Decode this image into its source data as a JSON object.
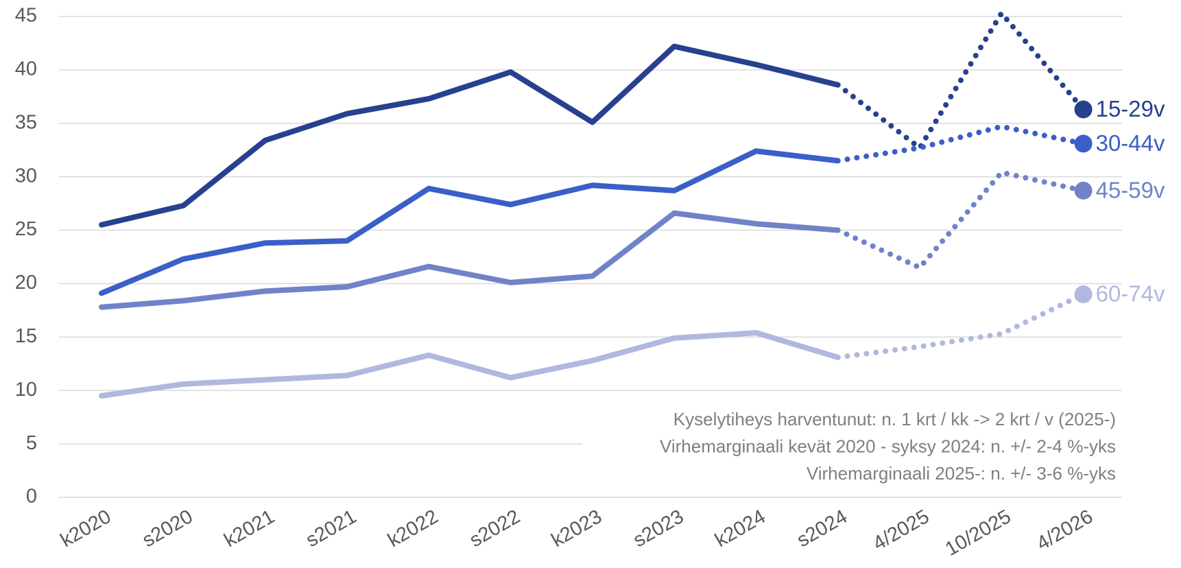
{
  "chart_data": {
    "type": "line",
    "categories": [
      "k2020",
      "s2020",
      "k2021",
      "s2021",
      "k2022",
      "s2022",
      "k2023",
      "s2023",
      "k2024",
      "s2024",
      "4/2025",
      "10/2025",
      "4/2026"
    ],
    "series": [
      {
        "name": "15-29v",
        "color": "#27418f",
        "values": [
          25.5,
          27.3,
          33.4,
          35.9,
          37.3,
          39.8,
          35.1,
          42.2,
          40.5,
          38.6,
          32.7,
          45.3,
          36.3
        ]
      },
      {
        "name": "30-44v",
        "color": "#3a5fc8",
        "values": [
          19.1,
          22.3,
          23.8,
          24.0,
          28.9,
          27.4,
          29.2,
          28.7,
          32.4,
          31.5,
          32.7,
          34.7,
          33.1
        ]
      },
      {
        "name": "45-59v",
        "color": "#7083c8",
        "values": [
          17.8,
          18.4,
          19.3,
          19.7,
          21.6,
          20.1,
          20.7,
          26.6,
          25.6,
          25.0,
          21.5,
          30.4,
          28.7
        ]
      },
      {
        "name": "60-74v",
        "color": "#b0b8e0",
        "values": [
          9.5,
          10.6,
          11.0,
          11.4,
          13.3,
          11.2,
          12.8,
          14.9,
          15.4,
          13.1,
          14.1,
          15.3,
          19.0
        ]
      }
    ],
    "dotted_from": "s2024",
    "ylim": [
      0,
      45
    ],
    "yticks": [
      0,
      5,
      10,
      15,
      20,
      25,
      30,
      35,
      40,
      45
    ],
    "grid": true,
    "annotations": [
      "Kyselytiheys harventunut: n. 1 krt / kk -> 2 krt / v (2025-)",
      "Virhemarginaali kevät 2020 - syksy 2024: n. +/- 2-4 %-yks",
      "Virhemarginaali 2025-: n. +/- 3-6 %-yks"
    ]
  }
}
